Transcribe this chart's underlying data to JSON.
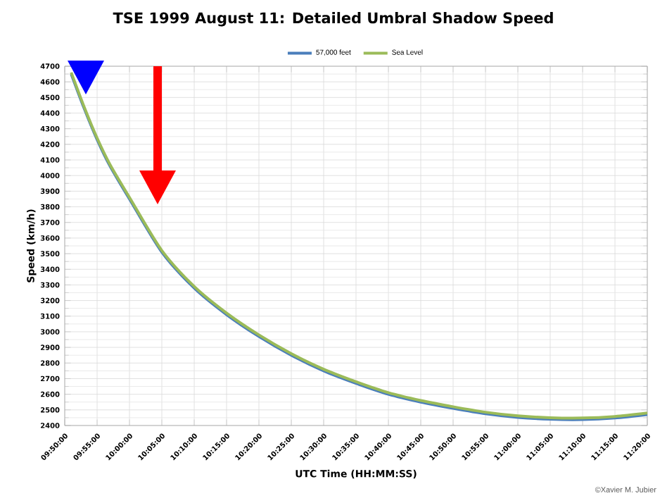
{
  "chart_data": {
    "type": "line",
    "title": "TSE 1999 August 11: Detailed Umbral Shadow Speed",
    "xlabel": "UTC Time (HH:MM:SS)",
    "ylabel": "Speed (km/h)",
    "annotations": [
      "©Xavier M. Jubier"
    ],
    "x": [
      9.85,
      9.8833,
      9.9167,
      9.95,
      10,
      10.0833,
      10.1667,
      10.25,
      10.3333,
      10.4167,
      10.5,
      10.5833,
      10.6667,
      10.75,
      10.8333,
      10.9167,
      11,
      11.0833,
      11.1667,
      11.25,
      11.3333
    ],
    "series": [
      {
        "name": "57,000 feet",
        "color": "#4a7ebb",
        "values": [
          4650,
          4430,
          4230,
          4060,
          3850,
          3510,
          3280,
          3110,
          2970,
          2850,
          2750,
          2670,
          2600,
          2550,
          2510,
          2475,
          2452,
          2440,
          2438,
          2448,
          2470
        ]
      },
      {
        "name": "Sea Level",
        "color": "#9bbb59",
        "values": [
          4660,
          4440,
          4240,
          4070,
          3860,
          3520,
          3290,
          3120,
          2980,
          2860,
          2760,
          2680,
          2610,
          2560,
          2520,
          2485,
          2462,
          2450,
          2448,
          2458,
          2480
        ]
      }
    ],
    "xlim": [
      9.8333,
      11.3333
    ],
    "ylim": [
      2400,
      4700
    ],
    "xticks": [
      {
        "value": 9.8333,
        "label": "09:50:00"
      },
      {
        "value": 9.9167,
        "label": "09:55:00"
      },
      {
        "value": 10,
        "label": "10:00:00"
      },
      {
        "value": 10.0833,
        "label": "10:05:00"
      },
      {
        "value": 10.1667,
        "label": "10:10:00"
      },
      {
        "value": 10.25,
        "label": "10:15:00"
      },
      {
        "value": 10.3333,
        "label": "10:20:00"
      },
      {
        "value": 10.4167,
        "label": "10:25:00"
      },
      {
        "value": 10.5,
        "label": "10:30:00"
      },
      {
        "value": 10.5833,
        "label": "10:35:00"
      },
      {
        "value": 10.6667,
        "label": "10:40:00"
      },
      {
        "value": 10.75,
        "label": "10:45:00"
      },
      {
        "value": 10.8333,
        "label": "10:50:00"
      },
      {
        "value": 10.9167,
        "label": "10:55:00"
      },
      {
        "value": 11,
        "label": "11:00:00"
      },
      {
        "value": 11.0833,
        "label": "11:05:00"
      },
      {
        "value": 11.1667,
        "label": "11:10:00"
      },
      {
        "value": 11.25,
        "label": "11:15:00"
      },
      {
        "value": 11.3333,
        "label": "11:20:00"
      }
    ],
    "yticks": [
      2400,
      2500,
      2600,
      2700,
      2800,
      2900,
      3000,
      3100,
      3200,
      3300,
      3400,
      3500,
      3600,
      3700,
      3800,
      3900,
      4000,
      4100,
      4200,
      4300,
      4400,
      4500,
      4600,
      4700
    ],
    "grid": true,
    "legend": "top",
    "marker": "none",
    "line_style": "solid"
  }
}
